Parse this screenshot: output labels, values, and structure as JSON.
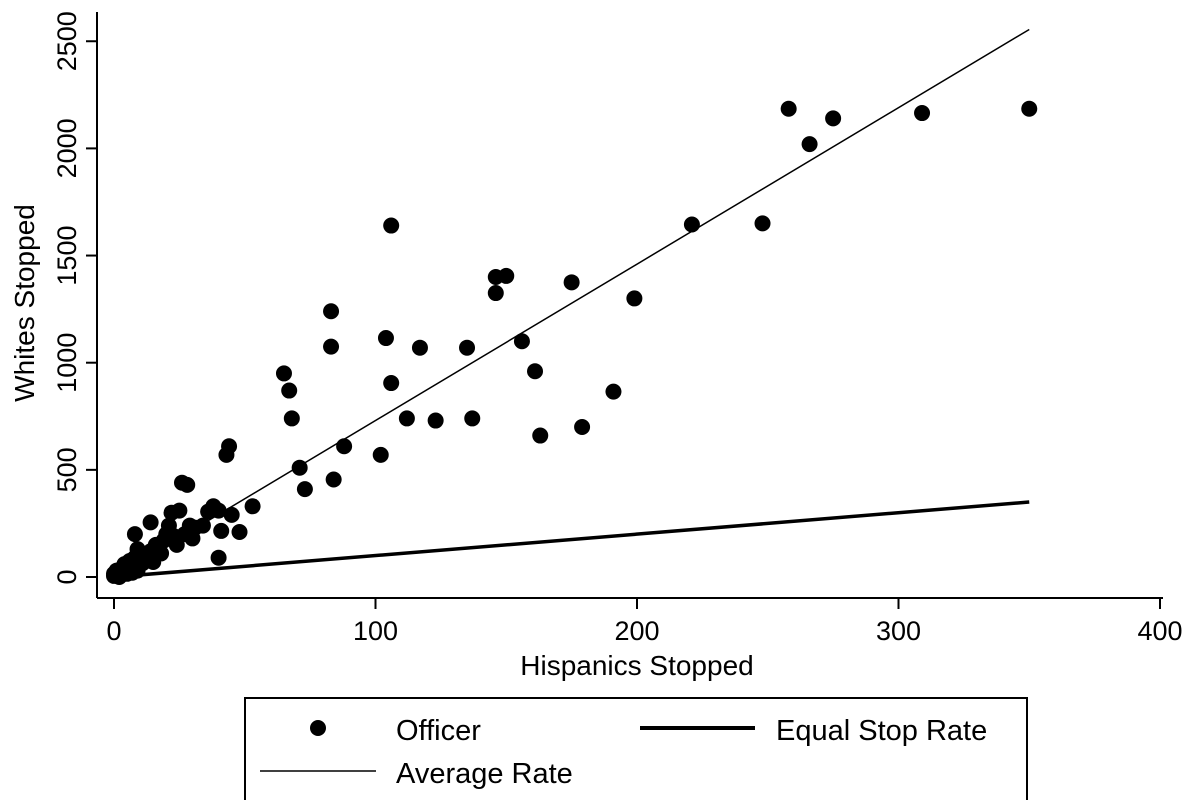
{
  "chart_data": {
    "type": "scatter",
    "title": "",
    "xlabel": "Hispanics Stopped",
    "ylabel": "Whites Stopped",
    "xlim": [
      0,
      400
    ],
    "ylim": [
      0,
      2550
    ],
    "xticks": [
      "0",
      "100",
      "200",
      "300",
      "400"
    ],
    "yticks": [
      "0",
      "500",
      "1000",
      "1500",
      "2000",
      "2500"
    ],
    "grid": false,
    "legend_position": "bottom",
    "series": [
      {
        "name": "Officer",
        "kind": "scatter",
        "points": [
          [
            0,
            5
          ],
          [
            0,
            15
          ],
          [
            1,
            10
          ],
          [
            1,
            30
          ],
          [
            2,
            0
          ],
          [
            2,
            20
          ],
          [
            3,
            40
          ],
          [
            3,
            12
          ],
          [
            4,
            25
          ],
          [
            4,
            60
          ],
          [
            5,
            35
          ],
          [
            5,
            15
          ],
          [
            6,
            50
          ],
          [
            6,
            75
          ],
          [
            7,
            40
          ],
          [
            7,
            20
          ],
          [
            8,
            90
          ],
          [
            8,
            60
          ],
          [
            9,
            130
          ],
          [
            9,
            30
          ],
          [
            10,
            80
          ],
          [
            10,
            110
          ],
          [
            11,
            65
          ],
          [
            12,
            100
          ],
          [
            13,
            90
          ],
          [
            14,
            120
          ],
          [
            15,
            70
          ],
          [
            16,
            150
          ],
          [
            17,
            130
          ],
          [
            18,
            110
          ],
          [
            8,
            200
          ],
          [
            14,
            255
          ],
          [
            19,
            170
          ],
          [
            20,
            200
          ],
          [
            21,
            240
          ],
          [
            22,
            300
          ],
          [
            23,
            190
          ],
          [
            24,
            150
          ],
          [
            25,
            310
          ],
          [
            26,
            440
          ],
          [
            27,
            200
          ],
          [
            28,
            430
          ],
          [
            29,
            240
          ],
          [
            30,
            180
          ],
          [
            31,
            230
          ],
          [
            34,
            240
          ],
          [
            36,
            305
          ],
          [
            38,
            330
          ],
          [
            40,
            310
          ],
          [
            40,
            90
          ],
          [
            41,
            215
          ],
          [
            43,
            570
          ],
          [
            44,
            610
          ],
          [
            45,
            290
          ],
          [
            48,
            210
          ],
          [
            53,
            330
          ],
          [
            65,
            950
          ],
          [
            67,
            870
          ],
          [
            68,
            740
          ],
          [
            71,
            510
          ],
          [
            73,
            410
          ],
          [
            83,
            1240
          ],
          [
            83,
            1075
          ],
          [
            84,
            455
          ],
          [
            88,
            610
          ],
          [
            102,
            570
          ],
          [
            104,
            1115
          ],
          [
            106,
            1640
          ],
          [
            106,
            905
          ],
          [
            112,
            740
          ],
          [
            117,
            1070
          ],
          [
            123,
            730
          ],
          [
            135,
            1070
          ],
          [
            137,
            740
          ],
          [
            146,
            1400
          ],
          [
            146,
            1325
          ],
          [
            150,
            1405
          ],
          [
            156,
            1100
          ],
          [
            161,
            960
          ],
          [
            163,
            660
          ],
          [
            175,
            1375
          ],
          [
            179,
            700
          ],
          [
            191,
            865
          ],
          [
            199,
            1300
          ],
          [
            221,
            1645
          ],
          [
            248,
            1650
          ],
          [
            258,
            2185
          ],
          [
            266,
            2020
          ],
          [
            275,
            2140
          ],
          [
            309,
            2165
          ],
          [
            350,
            2185
          ]
        ]
      },
      {
        "name": "Equal Stop Rate",
        "kind": "line",
        "points": [
          [
            0,
            0
          ],
          [
            350,
            350
          ]
        ]
      },
      {
        "name": "Average Rate",
        "kind": "line",
        "points": [
          [
            0,
            0
          ],
          [
            350,
            2555
          ]
        ]
      }
    ]
  },
  "legend": {
    "officer_label": "Officer",
    "equal_label": "Equal Stop Rate",
    "average_label": "Average Rate"
  }
}
